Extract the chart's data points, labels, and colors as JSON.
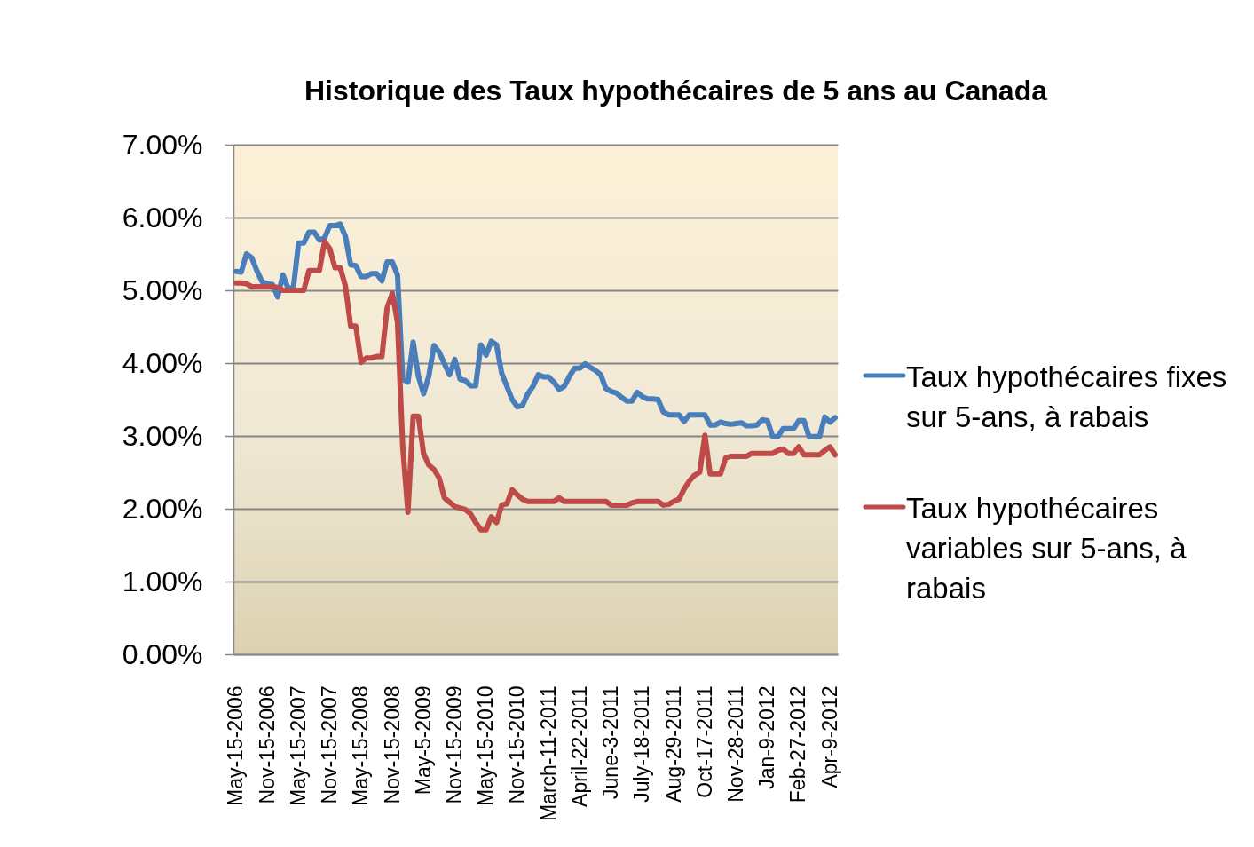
{
  "chart_data": {
    "type": "line",
    "title": "Historique des Taux hypothécaires de 5 ans au Canada",
    "categories": [
      "May-15-2006",
      null,
      null,
      null,
      null,
      null,
      "Nov-15-2006",
      null,
      null,
      null,
      null,
      null,
      "May-15-2007",
      null,
      null,
      null,
      null,
      null,
      "Nov-15-2007",
      null,
      null,
      null,
      null,
      null,
      "May-15-2008",
      null,
      null,
      null,
      null,
      null,
      "Nov-15-2008",
      null,
      null,
      null,
      null,
      null,
      "May-5-2009",
      null,
      null,
      null,
      null,
      null,
      "Nov-15-2009",
      null,
      null,
      null,
      null,
      null,
      "May-15-2010",
      null,
      null,
      null,
      null,
      null,
      "Nov-15-2010",
      null,
      null,
      null,
      null,
      null,
      "March-11-2011",
      null,
      null,
      null,
      null,
      null,
      "April-22-2011",
      null,
      null,
      null,
      null,
      null,
      "June-3-2011",
      null,
      null,
      null,
      null,
      null,
      "July-18-2011",
      null,
      null,
      null,
      null,
      null,
      "Aug-29-2011",
      null,
      null,
      null,
      null,
      null,
      "Oct-17-2011",
      null,
      null,
      null,
      null,
      null,
      "Nov-28-2011",
      null,
      null,
      null,
      null,
      null,
      "Jan-9-2012",
      null,
      null,
      null,
      null,
      null,
      "Feb-27-2012",
      null,
      null,
      null,
      null,
      null,
      "Apr-9-2012",
      null
    ],
    "series": [
      {
        "name": "Taux hypothécaires fixes sur 5-ans, à rabais",
        "color": "#4a7ebb",
        "values": [
          5.26,
          5.25,
          5.5,
          5.45,
          5.27,
          5.12,
          5.09,
          5.08,
          4.91,
          5.21,
          5.03,
          5.03,
          5.65,
          5.65,
          5.8,
          5.8,
          5.69,
          5.72,
          5.89,
          5.89,
          5.91,
          5.74,
          5.35,
          5.34,
          5.19,
          5.19,
          5.23,
          5.23,
          5.13,
          5.39,
          5.39,
          5.21,
          3.78,
          3.74,
          4.29,
          3.82,
          3.58,
          3.82,
          4.24,
          4.15,
          3.99,
          3.84,
          4.05,
          3.78,
          3.76,
          3.69,
          3.69,
          4.25,
          4.11,
          4.3,
          4.25,
          3.86,
          3.68,
          3.5,
          3.4,
          3.42,
          3.58,
          3.68,
          3.84,
          3.81,
          3.81,
          3.74,
          3.64,
          3.68,
          3.82,
          3.93,
          3.93,
          3.99,
          3.94,
          3.9,
          3.84,
          3.65,
          3.61,
          3.59,
          3.53,
          3.48,
          3.48,
          3.6,
          3.54,
          3.51,
          3.51,
          3.5,
          3.33,
          3.29,
          3.29,
          3.29,
          3.2,
          3.29,
          3.29,
          3.29,
          3.29,
          3.15,
          3.15,
          3.19,
          3.17,
          3.16,
          3.17,
          3.18,
          3.14,
          3.14,
          3.15,
          3.22,
          3.21,
          2.99,
          2.99,
          3.1,
          3.1,
          3.1,
          3.21,
          3.21,
          2.99,
          2.99,
          2.99,
          3.26,
          3.19,
          3.25
        ]
      },
      {
        "name": "Taux hypothécaires variables sur 5-ans, à rabais",
        "color": "#be4b48",
        "values": [
          5.1,
          5.1,
          5.09,
          5.05,
          5.05,
          5.05,
          5.05,
          5.05,
          5.04,
          5.0,
          5.0,
          5.0,
          5.0,
          5.0,
          5.27,
          5.27,
          5.27,
          5.67,
          5.57,
          5.31,
          5.31,
          5.06,
          4.51,
          4.51,
          4.01,
          4.07,
          4.07,
          4.09,
          4.09,
          4.76,
          4.96,
          4.56,
          2.85,
          1.95,
          3.27,
          3.27,
          2.76,
          2.6,
          2.54,
          2.42,
          2.15,
          2.09,
          2.03,
          2.01,
          1.99,
          1.93,
          1.81,
          1.71,
          1.71,
          1.89,
          1.81,
          2.05,
          2.07,
          2.26,
          2.19,
          2.13,
          2.1,
          2.1,
          2.1,
          2.1,
          2.1,
          2.1,
          2.15,
          2.1,
          2.1,
          2.1,
          2.1,
          2.1,
          2.1,
          2.1,
          2.1,
          2.1,
          2.05,
          2.05,
          2.05,
          2.05,
          2.08,
          2.1,
          2.1,
          2.1,
          2.1,
          2.1,
          2.05,
          2.06,
          2.1,
          2.13,
          2.27,
          2.38,
          2.46,
          2.5,
          3.01,
          2.48,
          2.48,
          2.48,
          2.7,
          2.72,
          2.72,
          2.72,
          2.72,
          2.76,
          2.76,
          2.76,
          2.76,
          2.76,
          2.8,
          2.82,
          2.76,
          2.76,
          2.85,
          2.74,
          2.74,
          2.74,
          2.74,
          2.8,
          2.85,
          2.74
        ]
      }
    ],
    "ylim": [
      0,
      7
    ],
    "yticks": [
      {
        "value": 0,
        "label": "0.00%"
      },
      {
        "value": 1,
        "label": "1.00%"
      },
      {
        "value": 2,
        "label": "2.00%"
      },
      {
        "value": 3,
        "label": "3.00%"
      },
      {
        "value": 4,
        "label": "4.00%"
      },
      {
        "value": 5,
        "label": "5.00%"
      },
      {
        "value": 6,
        "label": "6.00%"
      },
      {
        "value": 7,
        "label": "7.00%"
      }
    ],
    "grid": "y",
    "legend": "right",
    "line_style": "solid"
  }
}
